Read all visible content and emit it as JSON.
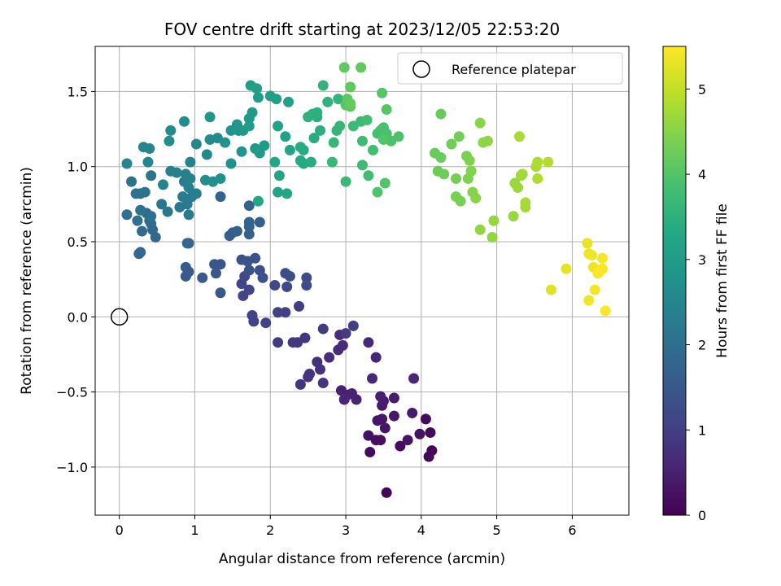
{
  "chart_data": {
    "type": "scatter",
    "title": "FOV centre drift starting at 2023/12/05 22:53:20",
    "xlabel": "Angular distance from reference (arcmin)",
    "ylabel": "Rotation from reference (arcmin)",
    "xlim": [
      -0.32,
      6.75
    ],
    "ylim": [
      -1.32,
      1.8
    ],
    "xticks": [
      0,
      1,
      2,
      3,
      4,
      5,
      6
    ],
    "yticks": [
      -1.0,
      -0.5,
      0.0,
      0.5,
      1.0,
      1.5
    ],
    "xtick_labels": [
      "0",
      "1",
      "2",
      "3",
      "4",
      "5",
      "6"
    ],
    "ytick_labels": [
      "−1.0",
      "−0.5",
      "0.0",
      "0.5",
      "1.0",
      "1.5"
    ],
    "grid": true,
    "legend": {
      "position": "top-right",
      "entries": [
        {
          "label": "Reference platepar",
          "marker": "open-circle"
        }
      ]
    },
    "reference_point": {
      "x": 0.0,
      "y": 0.0
    },
    "colorbar": {
      "label": "Hours from first FF file",
      "colormap": "viridis",
      "range": [
        0,
        5.5
      ],
      "ticks": [
        0,
        1,
        2,
        3,
        4,
        5
      ],
      "tick_labels": [
        "0",
        "1",
        "2",
        "3",
        "4",
        "5"
      ]
    },
    "points": [
      [
        3.54,
        -1.17,
        0.05
      ],
      [
        4.1,
        -0.93,
        0.08
      ],
      [
        4.14,
        -0.89,
        0.1
      ],
      [
        4.12,
        -0.77,
        0.12
      ],
      [
        4.06,
        -0.68,
        0.14
      ],
      [
        3.32,
        -0.9,
        0.16
      ],
      [
        3.72,
        -0.86,
        0.18
      ],
      [
        3.4,
        -0.82,
        0.2
      ],
      [
        3.46,
        -0.82,
        0.22
      ],
      [
        3.3,
        -0.79,
        0.24
      ],
      [
        3.98,
        -0.78,
        0.26
      ],
      [
        3.82,
        -0.82,
        0.28
      ],
      [
        3.52,
        -0.74,
        0.3
      ],
      [
        3.42,
        -0.69,
        0.32
      ],
      [
        3.48,
        -0.68,
        0.34
      ],
      [
        3.64,
        -0.66,
        0.36
      ],
      [
        3.88,
        -0.64,
        0.38
      ],
      [
        3.48,
        -0.59,
        0.4
      ],
      [
        3.64,
        -0.54,
        0.42
      ],
      [
        3.5,
        -0.56,
        0.44
      ],
      [
        3.46,
        -0.53,
        0.46
      ],
      [
        2.94,
        -0.49,
        0.48
      ],
      [
        3.02,
        -0.52,
        0.5
      ],
      [
        3.08,
        -0.51,
        0.52
      ],
      [
        3.14,
        -0.55,
        0.54
      ],
      [
        2.98,
        -0.55,
        0.56
      ],
      [
        3.9,
        -0.41,
        0.58
      ],
      [
        3.35,
        -0.41,
        0.6
      ],
      [
        3.4,
        -0.27,
        0.62
      ],
      [
        3.3,
        -0.17,
        0.64
      ],
      [
        2.9,
        -0.22,
        0.66
      ],
      [
        2.96,
        -0.19,
        0.68
      ],
      [
        2.92,
        -0.12,
        0.7
      ],
      [
        2.78,
        -0.27,
        0.72
      ],
      [
        2.66,
        -0.35,
        0.74
      ],
      [
        2.62,
        -0.3,
        0.76
      ],
      [
        2.52,
        -0.38,
        0.78
      ],
      [
        2.5,
        -0.4,
        0.8
      ],
      [
        2.4,
        -0.45,
        0.82
      ],
      [
        2.7,
        -0.44,
        0.84
      ],
      [
        2.46,
        -0.14,
        0.86
      ],
      [
        2.36,
        -0.17,
        0.88
      ],
      [
        2.3,
        -0.17,
        0.9
      ],
      [
        2.1,
        -0.17,
        0.92
      ],
      [
        2.7,
        -0.08,
        0.94
      ],
      [
        3.0,
        -0.11,
        0.96
      ],
      [
        3.1,
        -0.06,
        0.98
      ],
      [
        2.38,
        0.07,
        1.0
      ],
      [
        2.2,
        0.03,
        1.02
      ],
      [
        2.1,
        0.03,
        1.04
      ],
      [
        1.94,
        -0.04,
        1.06
      ],
      [
        1.76,
        0.01,
        1.08
      ],
      [
        1.78,
        -0.03,
        1.1
      ],
      [
        1.64,
        0.14,
        1.12
      ],
      [
        1.72,
        0.18,
        1.14
      ],
      [
        1.62,
        0.22,
        1.16
      ],
      [
        1.66,
        0.27,
        1.18
      ],
      [
        2.06,
        0.21,
        1.2
      ],
      [
        2.22,
        0.2,
        1.22
      ],
      [
        2.48,
        0.21,
        1.24
      ],
      [
        2.48,
        0.26,
        1.26
      ],
      [
        2.26,
        0.27,
        1.28
      ],
      [
        2.2,
        0.29,
        1.3
      ],
      [
        1.86,
        0.31,
        1.32
      ],
      [
        1.9,
        0.26,
        1.34
      ],
      [
        1.72,
        0.31,
        1.36
      ],
      [
        1.7,
        0.37,
        1.38
      ],
      [
        1.62,
        0.38,
        1.4
      ],
      [
        1.8,
        0.39,
        1.42
      ],
      [
        1.34,
        0.35,
        1.44
      ],
      [
        1.26,
        0.35,
        1.46
      ],
      [
        1.28,
        0.29,
        1.48
      ],
      [
        1.34,
        0.16,
        1.5
      ],
      [
        1.1,
        0.26,
        1.52
      ],
      [
        0.88,
        0.27,
        1.54
      ],
      [
        0.88,
        0.33,
        1.56
      ],
      [
        0.92,
        0.3,
        1.58
      ],
      [
        1.46,
        0.54,
        1.6
      ],
      [
        1.5,
        0.56,
        1.62
      ],
      [
        1.56,
        0.57,
        1.64
      ],
      [
        1.72,
        0.55,
        1.66
      ],
      [
        1.86,
        0.63,
        1.68
      ],
      [
        1.72,
        0.63,
        1.7
      ],
      [
        1.72,
        0.6,
        1.72
      ],
      [
        1.72,
        0.74,
        1.74
      ],
      [
        1.34,
        0.8,
        1.76
      ],
      [
        0.9,
        0.49,
        1.78
      ],
      [
        0.92,
        0.49,
        1.8
      ],
      [
        0.48,
        0.53,
        1.82
      ],
      [
        0.44,
        0.58,
        1.84
      ],
      [
        0.26,
        0.42,
        1.86
      ],
      [
        0.28,
        0.43,
        1.88
      ],
      [
        0.3,
        0.57,
        1.9
      ],
      [
        0.36,
        0.69,
        1.92
      ],
      [
        0.4,
        0.64,
        1.94
      ],
      [
        0.42,
        0.62,
        1.96
      ],
      [
        0.42,
        0.67,
        1.98
      ],
      [
        0.24,
        0.64,
        2.0
      ],
      [
        0.1,
        0.68,
        2.02
      ],
      [
        0.28,
        0.71,
        2.04
      ],
      [
        0.22,
        0.82,
        2.06
      ],
      [
        0.28,
        0.82,
        2.08
      ],
      [
        0.34,
        0.83,
        2.1
      ],
      [
        0.16,
        0.9,
        2.12
      ],
      [
        0.42,
        0.94,
        2.14
      ],
      [
        0.56,
        0.75,
        2.16
      ],
      [
        0.64,
        0.7,
        2.18
      ],
      [
        0.8,
        0.73,
        2.2
      ],
      [
        0.92,
        0.68,
        2.22
      ],
      [
        0.9,
        0.75,
        2.24
      ],
      [
        0.84,
        0.8,
        2.26
      ],
      [
        0.86,
        0.9,
        2.28
      ],
      [
        0.92,
        0.86,
        2.3
      ],
      [
        0.96,
        0.8,
        2.32
      ],
      [
        1.02,
        0.82,
        2.34
      ],
      [
        0.68,
        0.97,
        2.36
      ],
      [
        0.76,
        0.96,
        2.38
      ],
      [
        0.88,
        0.95,
        2.4
      ],
      [
        0.94,
        0.92,
        2.42
      ],
      [
        0.94,
        1.03,
        2.44
      ],
      [
        0.58,
        0.88,
        2.46
      ],
      [
        0.1,
        1.02,
        2.48
      ],
      [
        0.32,
        1.13,
        2.5
      ],
      [
        0.4,
        1.12,
        2.52
      ],
      [
        0.38,
        1.03,
        2.54
      ],
      [
        1.02,
        1.15,
        2.56
      ],
      [
        1.16,
        1.08,
        2.58
      ],
      [
        1.2,
        1.18,
        2.6
      ],
      [
        1.3,
        1.19,
        2.62
      ],
      [
        0.66,
        1.17,
        2.64
      ],
      [
        0.68,
        1.24,
        2.66
      ],
      [
        0.86,
        1.3,
        2.68
      ],
      [
        1.14,
        0.91,
        2.7
      ],
      [
        1.24,
        0.9,
        2.72
      ],
      [
        1.34,
        0.92,
        2.74
      ],
      [
        1.48,
        1.02,
        2.76
      ],
      [
        1.4,
        1.16,
        2.78
      ],
      [
        1.48,
        1.24,
        2.8
      ],
      [
        1.62,
        1.1,
        2.82
      ],
      [
        1.58,
        1.24,
        2.84
      ],
      [
        1.2,
        1.33,
        2.86
      ],
      [
        1.56,
        1.28,
        2.88
      ],
      [
        1.64,
        1.24,
        2.9
      ],
      [
        1.72,
        1.32,
        2.92
      ],
      [
        1.8,
        1.12,
        2.94
      ],
      [
        1.86,
        1.09,
        2.96
      ],
      [
        1.92,
        1.14,
        2.98
      ],
      [
        1.76,
        1.36,
        3.0
      ],
      [
        1.72,
        1.27,
        3.02
      ],
      [
        1.84,
        1.46,
        3.04
      ],
      [
        1.74,
        1.54,
        3.06
      ],
      [
        1.82,
        1.52,
        3.08
      ],
      [
        2.0,
        1.47,
        3.1
      ],
      [
        2.08,
        1.45,
        3.12
      ],
      [
        2.24,
        1.43,
        3.14
      ],
      [
        2.1,
        1.27,
        3.16
      ],
      [
        2.2,
        1.2,
        3.18
      ],
      [
        2.26,
        1.11,
        3.2
      ],
      [
        2.12,
        0.94,
        3.22
      ],
      [
        2.1,
        0.83,
        3.24
      ],
      [
        2.22,
        0.82,
        3.26
      ],
      [
        1.84,
        0.77,
        3.28
      ],
      [
        2.06,
        1.03,
        3.3
      ],
      [
        2.4,
        1.04,
        3.32
      ],
      [
        2.44,
        1.02,
        3.34
      ],
      [
        2.44,
        1.11,
        3.36
      ],
      [
        2.4,
        1.13,
        3.38
      ],
      [
        2.54,
        1.03,
        3.4
      ],
      [
        2.58,
        1.19,
        3.42
      ],
      [
        2.66,
        1.24,
        3.44
      ],
      [
        2.62,
        1.33,
        3.46
      ],
      [
        2.56,
        1.35,
        3.48
      ],
      [
        2.62,
        1.36,
        3.5
      ],
      [
        2.5,
        1.33,
        3.52
      ],
      [
        2.76,
        1.43,
        3.54
      ],
      [
        2.7,
        1.54,
        3.56
      ],
      [
        2.9,
        1.45,
        3.58
      ],
      [
        2.88,
        1.24,
        3.6
      ],
      [
        2.92,
        1.27,
        3.62
      ],
      [
        2.84,
        1.16,
        3.64
      ],
      [
        2.82,
        1.03,
        3.66
      ],
      [
        3.0,
        0.9,
        3.68
      ],
      [
        3.1,
        1.27,
        3.7
      ],
      [
        3.2,
        1.3,
        3.72
      ],
      [
        3.22,
        1.17,
        3.74
      ],
      [
        3.22,
        1.01,
        3.76
      ],
      [
        3.3,
        0.94,
        3.78
      ],
      [
        3.28,
        1.31,
        3.8
      ],
      [
        3.36,
        1.11,
        3.82
      ],
      [
        3.42,
        1.22,
        3.84
      ],
      [
        3.46,
        1.24,
        3.86
      ],
      [
        3.5,
        1.26,
        3.88
      ],
      [
        3.54,
        1.22,
        3.9
      ],
      [
        3.6,
        1.17,
        3.92
      ],
      [
        3.7,
        1.2,
        3.94
      ],
      [
        3.42,
        0.83,
        3.96
      ],
      [
        3.52,
        0.89,
        3.98
      ],
      [
        3.5,
        1.18,
        4.0
      ],
      [
        3.48,
        1.49,
        4.02
      ],
      [
        3.54,
        1.38,
        4.04
      ],
      [
        3.0,
        1.41,
        4.06
      ],
      [
        3.06,
        1.4,
        4.08
      ],
      [
        3.02,
        1.45,
        4.1
      ],
      [
        3.06,
        1.53,
        4.12
      ],
      [
        2.98,
        1.66,
        4.14
      ],
      [
        3.2,
        1.66,
        4.16
      ],
      [
        3.06,
        1.42,
        4.18
      ],
      [
        4.26,
        1.35,
        4.2
      ],
      [
        4.18,
        1.09,
        4.22
      ],
      [
        4.26,
        1.06,
        4.24
      ],
      [
        4.22,
        0.97,
        4.26
      ],
      [
        4.3,
        0.95,
        4.28
      ],
      [
        4.4,
        1.15,
        4.3
      ],
      [
        4.5,
        1.2,
        4.32
      ],
      [
        4.46,
        0.92,
        4.34
      ],
      [
        4.46,
        0.8,
        4.36
      ],
      [
        4.52,
        0.77,
        4.38
      ],
      [
        4.6,
        1.07,
        4.4
      ],
      [
        4.64,
        1.04,
        4.42
      ],
      [
        4.62,
        0.92,
        4.44
      ],
      [
        4.66,
        0.97,
        4.46
      ],
      [
        4.68,
        0.83,
        4.48
      ],
      [
        4.72,
        0.79,
        4.5
      ],
      [
        4.78,
        1.29,
        4.52
      ],
      [
        4.82,
        1.16,
        4.54
      ],
      [
        4.88,
        1.17,
        4.56
      ],
      [
        4.78,
        0.58,
        4.58
      ],
      [
        4.94,
        0.53,
        4.6
      ],
      [
        4.96,
        0.64,
        4.62
      ],
      [
        5.22,
        0.67,
        4.64
      ],
      [
        5.24,
        0.89,
        4.66
      ],
      [
        5.28,
        0.86,
        4.68
      ],
      [
        5.32,
        0.94,
        4.7
      ],
      [
        5.34,
        0.95,
        4.72
      ],
      [
        5.38,
        0.73,
        4.74
      ],
      [
        5.38,
        0.76,
        4.76
      ],
      [
        5.3,
        1.2,
        4.78
      ],
      [
        5.52,
        1.0,
        4.8
      ],
      [
        5.54,
        1.03,
        4.82
      ],
      [
        5.54,
        0.92,
        4.84
      ],
      [
        5.68,
        1.03,
        4.86
      ],
      [
        5.72,
        0.18,
        5.24
      ],
      [
        5.92,
        0.32,
        5.28
      ],
      [
        6.2,
        0.49,
        5.32
      ],
      [
        6.22,
        0.42,
        5.34
      ],
      [
        6.26,
        0.41,
        5.36
      ],
      [
        6.28,
        0.33,
        5.38
      ],
      [
        6.22,
        0.11,
        5.4
      ],
      [
        6.3,
        0.18,
        5.42
      ],
      [
        6.34,
        0.29,
        5.44
      ],
      [
        6.4,
        0.39,
        5.45
      ],
      [
        6.4,
        0.32,
        5.46
      ],
      [
        6.44,
        0.04,
        5.48
      ],
      [
        6.36,
        0.3,
        5.49
      ]
    ]
  }
}
